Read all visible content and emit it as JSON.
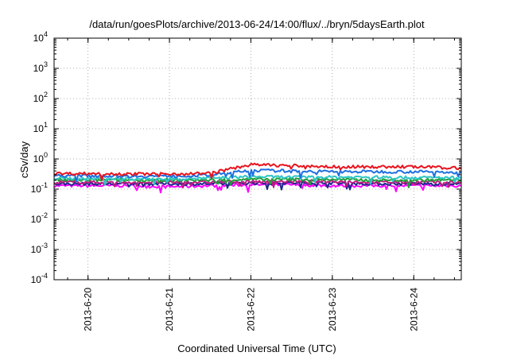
{
  "chart_data": {
    "type": "line",
    "title": "/data/run/goesPlots/archive/2013-06-24/14:00/flux/../bryn/5daysEarth.plot",
    "xlabel": "Coordinated Universal Time (UTC)",
    "ylabel": "cSv/day",
    "yscale": "log",
    "ylim": [
      0.0001,
      10000
    ],
    "xlim": [
      "2013-06-19T14:00",
      "2013-06-24T14:00"
    ],
    "grid": true,
    "y_ticks": [
      {
        "base": "10",
        "exp": "-4",
        "value": 0.0001
      },
      {
        "base": "10",
        "exp": "-3",
        "value": 0.001
      },
      {
        "base": "10",
        "exp": "-2",
        "value": 0.01
      },
      {
        "base": "10",
        "exp": "-1",
        "value": 0.1
      },
      {
        "base": "10",
        "exp": "0",
        "value": 1
      },
      {
        "base": "10",
        "exp": "1",
        "value": 10
      },
      {
        "base": "10",
        "exp": "2",
        "value": 100
      },
      {
        "base": "10",
        "exp": "3",
        "value": 1000
      },
      {
        "base": "10",
        "exp": "4",
        "value": 10000
      }
    ],
    "x_ticks": [
      {
        "label": "2013-6-20",
        "value": "2013-06-20T00:00"
      },
      {
        "label": "2013-6-21",
        "value": "2013-06-21T00:00"
      },
      {
        "label": "2013-6-22",
        "value": "2013-06-22T00:00"
      },
      {
        "label": "2013-6-23",
        "value": "2013-06-23T00:00"
      },
      {
        "label": "2013-6-24",
        "value": "2013-06-24T00:00"
      }
    ],
    "x": [
      "2013-06-19T14:00",
      "2013-06-20T00:00",
      "2013-06-20T12:00",
      "2013-06-21T00:00",
      "2013-06-21T12:00",
      "2013-06-22T00:00",
      "2013-06-22T12:00",
      "2013-06-23T00:00",
      "2013-06-23T12:00",
      "2013-06-24T00:00",
      "2013-06-24T14:00"
    ],
    "series": [
      {
        "color": "#e8141e",
        "values": [
          0.33,
          0.33,
          0.32,
          0.32,
          0.34,
          0.65,
          0.6,
          0.55,
          0.55,
          0.55,
          0.5
        ]
      },
      {
        "color": "#1f6fe0",
        "values": [
          0.28,
          0.28,
          0.27,
          0.27,
          0.29,
          0.42,
          0.4,
          0.38,
          0.38,
          0.38,
          0.36
        ]
      },
      {
        "color": "#2ec4c4",
        "values": [
          0.23,
          0.22,
          0.22,
          0.22,
          0.23,
          0.26,
          0.25,
          0.25,
          0.25,
          0.24,
          0.24
        ]
      },
      {
        "color": "#1f9e3a",
        "values": [
          0.2,
          0.2,
          0.2,
          0.2,
          0.2,
          0.21,
          0.21,
          0.21,
          0.2,
          0.2,
          0.2
        ]
      },
      {
        "color": "#c01880",
        "values": [
          0.17,
          0.17,
          0.17,
          0.17,
          0.17,
          0.18,
          0.18,
          0.18,
          0.17,
          0.17,
          0.17
        ]
      },
      {
        "color": "#1a2a8a",
        "values": [
          0.15,
          0.15,
          0.15,
          0.15,
          0.15,
          0.16,
          0.16,
          0.16,
          0.15,
          0.15,
          0.15
        ]
      },
      {
        "color": "#ff00ff",
        "values": [
          0.13,
          0.13,
          0.13,
          0.12,
          0.13,
          0.14,
          0.14,
          0.13,
          0.13,
          0.13,
          0.13
        ]
      }
    ]
  }
}
